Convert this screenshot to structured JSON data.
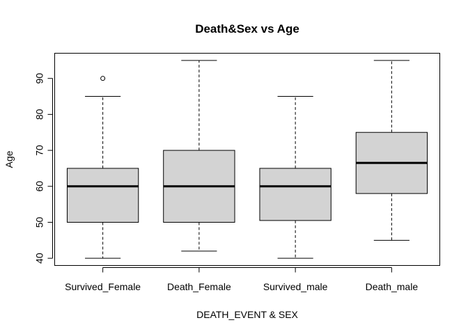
{
  "chart_data": {
    "type": "boxplot",
    "title": "Death&Sex vs Age",
    "xlabel": "DEATH_EVENT & SEX",
    "ylabel": "Age",
    "ylim": [
      38,
      97
    ],
    "yticks": [
      40,
      50,
      60,
      70,
      80,
      90
    ],
    "grid": false,
    "box_fill": "#d3d3d3",
    "categories": [
      "Survived_Female",
      "Death_Female",
      "Survived_male",
      "Death_male"
    ],
    "boxes": [
      {
        "whisker_low": 40,
        "q1": 50,
        "median": 60,
        "q3": 65,
        "whisker_high": 85,
        "outliers": [
          90
        ]
      },
      {
        "whisker_low": 42,
        "q1": 50,
        "median": 60,
        "q3": 70,
        "whisker_high": 95,
        "outliers": []
      },
      {
        "whisker_low": 40,
        "q1": 50.5,
        "median": 60,
        "q3": 65,
        "whisker_high": 85,
        "outliers": []
      },
      {
        "whisker_low": 45,
        "q1": 58,
        "median": 66.5,
        "q3": 75,
        "whisker_high": 95,
        "outliers": []
      }
    ]
  }
}
